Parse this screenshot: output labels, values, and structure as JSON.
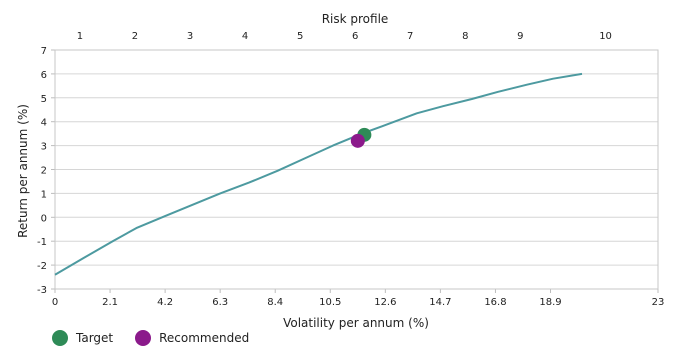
{
  "chart_data": {
    "type": "line",
    "title": "",
    "xlabel": "Volatility per annum (%)",
    "ylabel": "Return per annum (%)",
    "x2label": "Risk profile",
    "xlim": [
      0,
      23
    ],
    "ylim": [
      -3,
      7
    ],
    "x_ticks": [
      0,
      2.1,
      4.2,
      6.3,
      8.4,
      10.5,
      12.6,
      14.7,
      16.8,
      18.9,
      23
    ],
    "x_tick_labels": [
      "0",
      "2.1",
      "4.2",
      "6.3",
      "8.4",
      "10.5",
      "12.6",
      "14.7",
      "16.8",
      "18.9",
      "23"
    ],
    "y_ticks": [
      -3,
      -2,
      -1,
      0,
      1,
      2,
      3,
      4,
      5,
      6,
      7
    ],
    "y_tick_labels": [
      "-3",
      "-2",
      "-1",
      "0",
      "1",
      "2",
      "3",
      "4",
      "5",
      "6",
      "7"
    ],
    "risk_profile_ticks": [
      {
        "label": "1",
        "x": 0.95
      },
      {
        "label": "2",
        "x": 3.05
      },
      {
        "label": "3",
        "x": 5.15
      },
      {
        "label": "4",
        "x": 7.25
      },
      {
        "label": "5",
        "x": 9.35
      },
      {
        "label": "6",
        "x": 11.45
      },
      {
        "label": "7",
        "x": 13.55
      },
      {
        "label": "8",
        "x": 15.65
      },
      {
        "label": "9",
        "x": 17.75
      },
      {
        "label": "10",
        "x": 21.0
      }
    ],
    "grid": true,
    "legend_position": "bottom-left",
    "series": [
      {
        "color": "#4d9aa0",
        "x": [
          0,
          1.1,
          2.2,
          3.1,
          4.2,
          5.3,
          6.3,
          7.4,
          8.5,
          9.6,
          10.6,
          11.7,
          12.7,
          13.8,
          14.8,
          15.9,
          16.9,
          18.0,
          19.0,
          20.1
        ],
        "y": [
          -2.4,
          -1.7,
          -1.0,
          -0.45,
          0.05,
          0.55,
          1.0,
          1.45,
          1.95,
          2.5,
          3.0,
          3.5,
          3.9,
          4.35,
          4.65,
          4.95,
          5.25,
          5.55,
          5.8,
          6.0
        ]
      }
    ],
    "points": [
      {
        "name": "Target",
        "x": 11.8,
        "y": 3.45,
        "color": "#2e8b57"
      },
      {
        "name": "Recommended",
        "x": 11.55,
        "y": 3.2,
        "color": "#8b1a8b"
      }
    ]
  }
}
